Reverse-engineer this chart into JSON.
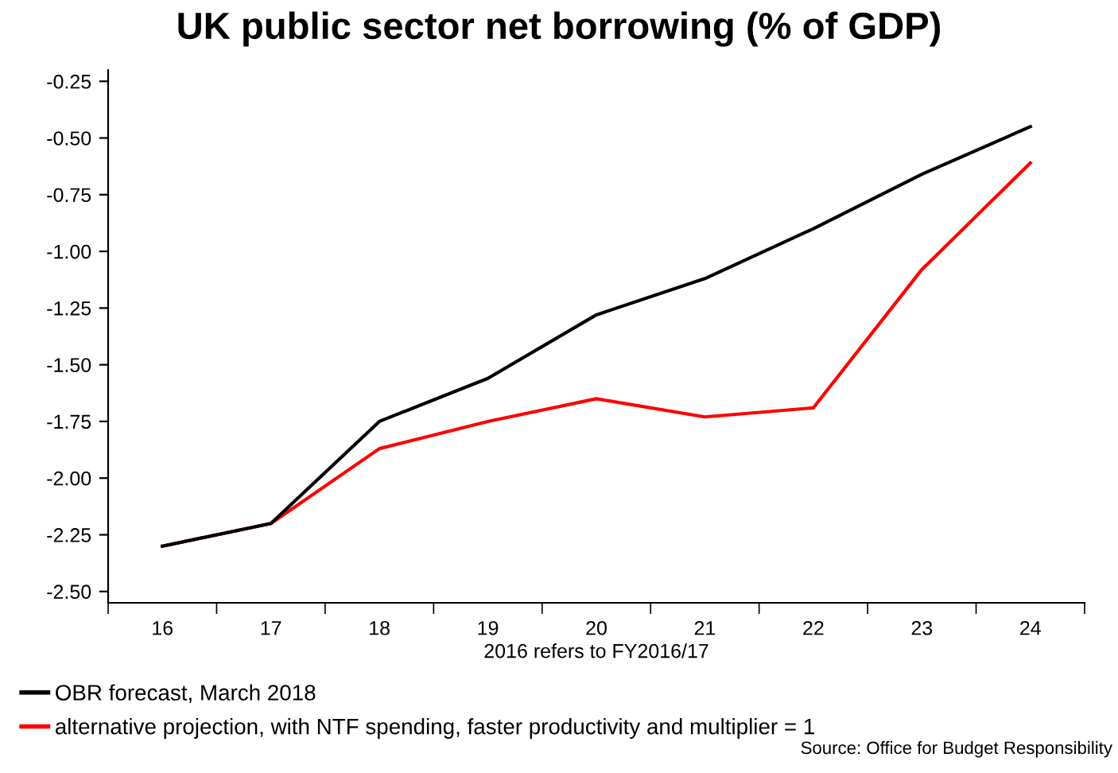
{
  "chart_data": {
    "type": "line",
    "title": "UK public sector net borrowing (% of GDP)",
    "xlabel": "2016 refers to FY2016/17",
    "categories": [
      "16",
      "17",
      "18",
      "19",
      "20",
      "21",
      "22",
      "23",
      "24"
    ],
    "series": [
      {
        "name": "OBR forecast, March 2018",
        "color": "#000000",
        "values": [
          -2.3,
          -2.2,
          -1.75,
          -1.56,
          -1.28,
          -1.12,
          -0.9,
          -0.66,
          -0.45
        ]
      },
      {
        "name": "alternative projection, with NTF spending, faster productivity and multiplier = 1",
        "color": "#ff0000",
        "values": [
          -2.3,
          -2.2,
          -1.87,
          -1.75,
          -1.65,
          -1.73,
          -1.69,
          -1.08,
          -0.61
        ]
      }
    ],
    "ylim": [
      -2.55,
      -0.2
    ],
    "yticks": [
      {
        "value": -2.5,
        "label": "-2.50"
      },
      {
        "value": -2.25,
        "label": "-2.25"
      },
      {
        "value": -2.0,
        "label": "-2.00"
      },
      {
        "value": -1.75,
        "label": "-1.75"
      },
      {
        "value": -1.5,
        "label": "-1.50"
      },
      {
        "value": -1.25,
        "label": "-1.25"
      },
      {
        "value": -1.0,
        "label": "-1.00"
      },
      {
        "value": -0.75,
        "label": "-0.75"
      },
      {
        "value": -0.5,
        "label": "-0.50"
      },
      {
        "value": -0.25,
        "label": "-0.25"
      }
    ],
    "grid": false,
    "legend": "bottom left",
    "marker": "none",
    "line_style": "solid",
    "annotations": [
      "Source: Office for Budget Responsibility"
    ]
  }
}
